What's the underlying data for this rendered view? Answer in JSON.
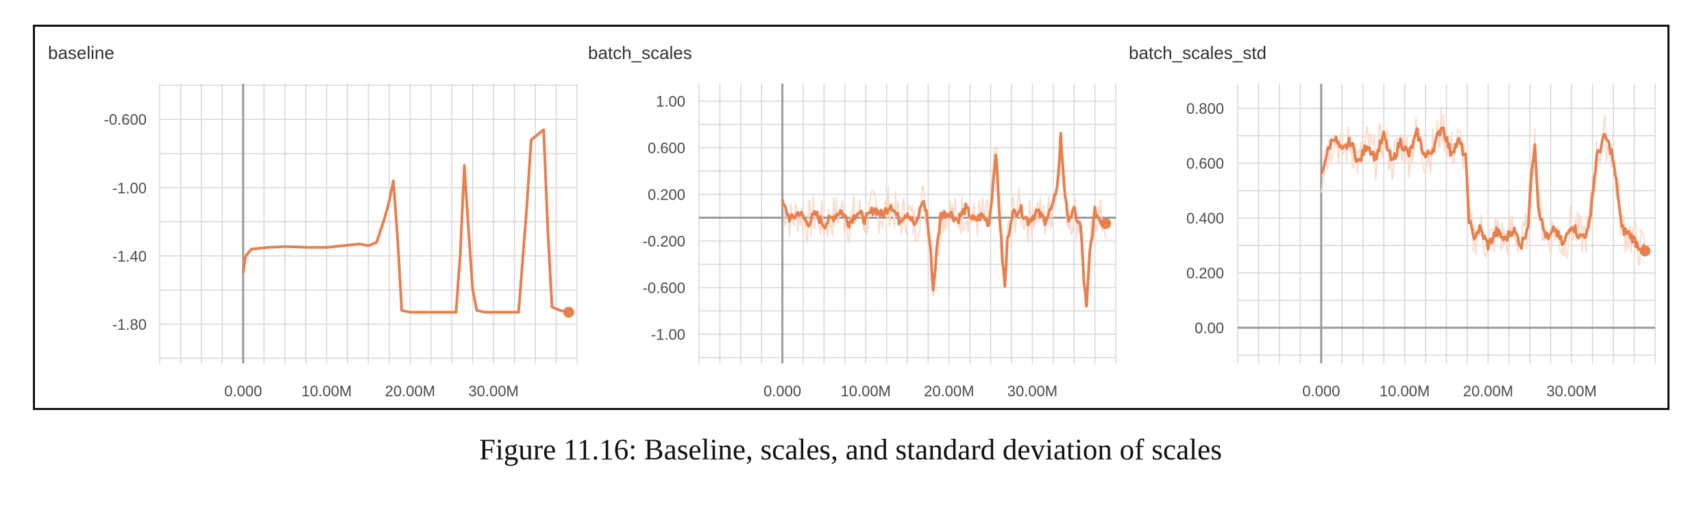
{
  "caption": "Figure 11.16: Baseline, scales, and standard deviation of scales",
  "colors": {
    "line": "#e8804e",
    "band": "#f8d8c8",
    "grid": "#d6d6d6",
    "axis": "#9a9a9a",
    "text": "#4a4a4a"
  },
  "chart_data": [
    {
      "type": "line",
      "title": "baseline",
      "x_tick_labels": [
        "0.000",
        "10.00M",
        "20.00M",
        "30.00M"
      ],
      "x_ticks": [
        0,
        10000000,
        20000000,
        30000000
      ],
      "y_tick_labels": [
        "-0.600",
        "-1.00",
        "-1.40",
        "-1.80"
      ],
      "y_ticks": [
        -0.6,
        -1.0,
        -1.4,
        -1.8
      ],
      "xlim": [
        -10000000,
        40000000
      ],
      "ylim": [
        -2.03,
        -0.39
      ],
      "series": [
        {
          "smoothing_band": false,
          "points": [
            [
              0,
              -1.5
            ],
            [
              300000,
              -1.4
            ],
            [
              1000000,
              -1.36
            ],
            [
              3000000,
              -1.35
            ],
            [
              5000000,
              -1.345
            ],
            [
              8000000,
              -1.35
            ],
            [
              10000000,
              -1.35
            ],
            [
              12000000,
              -1.34
            ],
            [
              14000000,
              -1.33
            ],
            [
              15000000,
              -1.34
            ],
            [
              16000000,
              -1.32
            ],
            [
              16800000,
              -1.2
            ],
            [
              17400000,
              -1.1
            ],
            [
              18000000,
              -0.96
            ],
            [
              18500000,
              -1.3
            ],
            [
              19000000,
              -1.72
            ],
            [
              20000000,
              -1.73
            ],
            [
              25500000,
              -1.73
            ],
            [
              26000000,
              -1.4
            ],
            [
              26500000,
              -0.87
            ],
            [
              27000000,
              -1.25
            ],
            [
              27500000,
              -1.6
            ],
            [
              28000000,
              -1.72
            ],
            [
              29000000,
              -1.73
            ],
            [
              33000000,
              -1.73
            ],
            [
              34000000,
              -1.1
            ],
            [
              34500000,
              -0.72
            ],
            [
              35500000,
              -0.68
            ],
            [
              36000000,
              -0.66
            ],
            [
              36500000,
              -1.25
            ],
            [
              37000000,
              -1.7
            ],
            [
              38000000,
              -1.72
            ],
            [
              39000000,
              -1.73
            ]
          ]
        }
      ]
    },
    {
      "type": "line",
      "title": "batch_scales",
      "x_tick_labels": [
        "0.000",
        "10.00M",
        "20.00M",
        "30.00M"
      ],
      "x_ticks": [
        0,
        10000000,
        20000000,
        30000000
      ],
      "y_tick_labels": [
        "1.00",
        "0.600",
        "0.200",
        "-0.200",
        "-0.600",
        "-1.00"
      ],
      "y_ticks": [
        1.0,
        0.6,
        0.2,
        -0.2,
        -0.6,
        -1.0
      ],
      "xlim": [
        -10000000,
        40000000
      ],
      "ylim": [
        -1.25,
        1.15
      ],
      "series": [
        {
          "smoothing_band": true,
          "points": [
            [
              0,
              0.12
            ],
            [
              1000000,
              -0.02
            ],
            [
              2000000,
              0.05
            ],
            [
              3000000,
              -0.05
            ],
            [
              4000000,
              0.03
            ],
            [
              5000000,
              -0.06
            ],
            [
              6000000,
              0.0
            ],
            [
              7000000,
              0.06
            ],
            [
              8000000,
              -0.04
            ],
            [
              9000000,
              0.05
            ],
            [
              10000000,
              -0.02
            ],
            [
              11000000,
              0.08
            ],
            [
              12000000,
              0.02
            ],
            [
              13000000,
              0.12
            ],
            [
              14000000,
              -0.02
            ],
            [
              15000000,
              0.05
            ],
            [
              16000000,
              -0.08
            ],
            [
              16800000,
              0.15
            ],
            [
              17300000,
              0.05
            ],
            [
              17800000,
              -0.3
            ],
            [
              18100000,
              -0.62
            ],
            [
              18500000,
              -0.3
            ],
            [
              19000000,
              0.02
            ],
            [
              20000000,
              0.05
            ],
            [
              21000000,
              -0.02
            ],
            [
              22000000,
              0.08
            ],
            [
              23000000,
              -0.03
            ],
            [
              24000000,
              0.02
            ],
            [
              24800000,
              -0.05
            ],
            [
              25300000,
              0.3
            ],
            [
              25600000,
              0.58
            ],
            [
              26000000,
              0.1
            ],
            [
              26400000,
              -0.35
            ],
            [
              26700000,
              -0.6
            ],
            [
              27000000,
              -0.2
            ],
            [
              27500000,
              0.02
            ],
            [
              28500000,
              0.08
            ],
            [
              29500000,
              -0.03
            ],
            [
              30500000,
              0.05
            ],
            [
              31500000,
              -0.02
            ],
            [
              32500000,
              0.1
            ],
            [
              33100000,
              0.35
            ],
            [
              33400000,
              0.7
            ],
            [
              33800000,
              0.3
            ],
            [
              34200000,
              0.0
            ],
            [
              35000000,
              0.05
            ],
            [
              35800000,
              -0.08
            ],
            [
              36200000,
              -0.55
            ],
            [
              36500000,
              -0.78
            ],
            [
              36900000,
              -0.3
            ],
            [
              37500000,
              0.05
            ],
            [
              38200000,
              -0.02
            ],
            [
              38800000,
              -0.05
            ]
          ]
        }
      ]
    },
    {
      "type": "line",
      "title": "batch_scales_std",
      "x_tick_labels": [
        "0.000",
        "10.00M",
        "20.00M",
        "30.00M"
      ],
      "x_ticks": [
        0,
        10000000,
        20000000,
        30000000
      ],
      "y_tick_labels": [
        "0.800",
        "0.600",
        "0.400",
        "0.200",
        "0.00"
      ],
      "y_ticks": [
        0.8,
        0.6,
        0.4,
        0.2,
        0.0
      ],
      "xlim": [
        -10000000,
        40000000
      ],
      "ylim": [
        -0.13,
        0.89
      ],
      "series": [
        {
          "smoothing_band": true,
          "points": [
            [
              0,
              0.55
            ],
            [
              500000,
              0.62
            ],
            [
              1500000,
              0.7
            ],
            [
              2500000,
              0.64
            ],
            [
              3500000,
              0.68
            ],
            [
              4500000,
              0.6
            ],
            [
              5500000,
              0.67
            ],
            [
              6500000,
              0.62
            ],
            [
              7500000,
              0.7
            ],
            [
              8500000,
              0.6
            ],
            [
              9500000,
              0.68
            ],
            [
              10500000,
              0.63
            ],
            [
              11500000,
              0.71
            ],
            [
              12500000,
              0.62
            ],
            [
              13500000,
              0.66
            ],
            [
              14500000,
              0.74
            ],
            [
              15500000,
              0.64
            ],
            [
              16500000,
              0.68
            ],
            [
              17300000,
              0.62
            ],
            [
              17700000,
              0.4
            ],
            [
              18200000,
              0.33
            ],
            [
              19000000,
              0.36
            ],
            [
              20000000,
              0.3
            ],
            [
              21000000,
              0.35
            ],
            [
              22000000,
              0.32
            ],
            [
              23000000,
              0.36
            ],
            [
              24000000,
              0.3
            ],
            [
              24800000,
              0.38
            ],
            [
              25300000,
              0.6
            ],
            [
              25600000,
              0.68
            ],
            [
              26000000,
              0.45
            ],
            [
              26600000,
              0.36
            ],
            [
              27200000,
              0.32
            ],
            [
              28000000,
              0.36
            ],
            [
              29000000,
              0.3
            ],
            [
              30000000,
              0.38
            ],
            [
              31000000,
              0.33
            ],
            [
              32000000,
              0.35
            ],
            [
              33000000,
              0.62
            ],
            [
              34000000,
              0.7
            ],
            [
              34800000,
              0.64
            ],
            [
              35500000,
              0.5
            ],
            [
              36000000,
              0.36
            ],
            [
              37000000,
              0.34
            ],
            [
              38000000,
              0.3
            ],
            [
              38800000,
              0.28
            ]
          ]
        }
      ]
    }
  ]
}
